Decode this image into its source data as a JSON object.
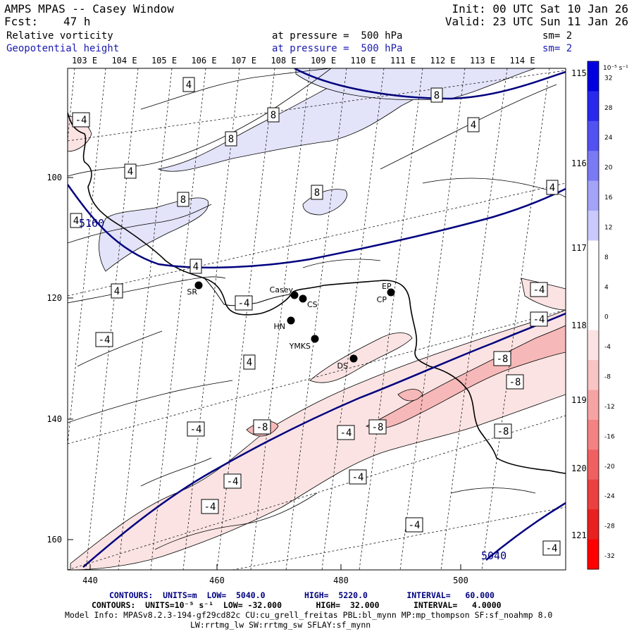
{
  "header": {
    "title": "AMPS MPAS -- Casey Window",
    "fcst_label": "Fcst:",
    "fcst_value": "47 h",
    "init": "Init: 00 UTC Sat 10 Jan 26",
    "valid": "Valid: 23 UTC Sun 11 Jan 26",
    "field1_name": "Relative vorticity",
    "field1_level": "at pressure =  500 hPa",
    "field1_sm": "sm= 2",
    "field2_name": "Geopotential height",
    "field2_level": "at pressure =  500 hPa",
    "field2_sm": "sm= 2"
  },
  "map": {
    "top_lon_labels": [
      "103 E",
      "104 E",
      "105 E",
      "106 E",
      "107 E",
      "108 E",
      "109 E",
      "110 E",
      "111 E",
      "112 E",
      "113 E",
      "114 E"
    ],
    "right_lon_labels": [
      "115 E",
      "116 E",
      "117 E",
      "118 E",
      "119 E",
      "120 E",
      "121 E"
    ],
    "x_ticks": [
      "440",
      "460",
      "480",
      "500"
    ],
    "y_ticks": [
      "100",
      "120",
      "140",
      "160"
    ],
    "stations": [
      {
        "id": "SR"
      },
      {
        "id": "Casey"
      },
      {
        "id": "CS"
      },
      {
        "id": "HN"
      },
      {
        "id": "YMKS"
      },
      {
        "id": "DS"
      },
      {
        "id": "CP"
      },
      {
        "id": "EP"
      }
    ],
    "vort_labels": [
      "4",
      "8",
      "8",
      "8",
      "4",
      "8",
      "4",
      "4",
      "8",
      "4",
      "4",
      "4",
      "4",
      "-4",
      "-4",
      "-4",
      "-4",
      "-8",
      "-8",
      "-8",
      "-8",
      "-4",
      "-4",
      "-8",
      "-4",
      "-4",
      "-4",
      "-4",
      "-4",
      "-4"
    ],
    "height_labels": [
      "5160",
      "5040"
    ],
    "colors": {
      "height_contour": "#000080",
      "coast": "#000000"
    }
  },
  "colorbar": {
    "unit": "10⁻⁵ s⁻¹",
    "labels": [
      "32",
      "28",
      "24",
      "20",
      "16",
      "12",
      "8",
      "4",
      "0",
      "-4",
      "-8",
      "-12",
      "-16",
      "-20",
      "-24",
      "-28",
      "-32"
    ],
    "colors": [
      "#0000e0",
      "#2929ee",
      "#5252f2",
      "#7a7af5",
      "#a3a3f8",
      "#c9c9fb",
      "#ffffff",
      "#ffffff",
      "#ffffff",
      "#fbe3e3",
      "#f9c4c4",
      "#f6a3a3",
      "#f38282",
      "#f06060",
      "#ec4040",
      "#e82020",
      "#ff0000"
    ]
  },
  "footer": {
    "line1": "CONTOURS:  UNITS=m  LOW=  5040.0        HIGH=  5220.0        INTERVAL=   60.000",
    "line2": "CONTOURS:  UNITS=10⁻⁵ s⁻¹  LOW= -32.000       HIGH=  32.000       INTERVAL=   4.0000",
    "line3": "Model Info: MPASv8.2.3-194-gf29cd82c CU:cu_grell_freitas PBL:bl_mynn MP:mp_thompson SF:sf_noahmp 8.0",
    "line4": "LW:rrtmg_lw SW:rrtmg_sw SFLAY:sf_mynn"
  }
}
